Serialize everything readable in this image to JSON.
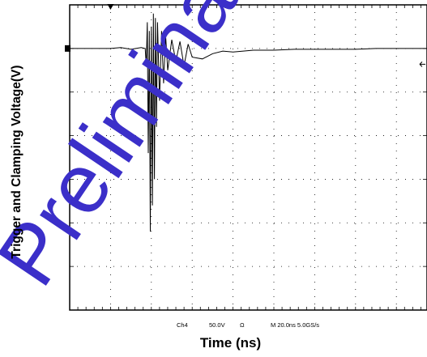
{
  "chart_data": {
    "type": "line",
    "title": "",
    "xlabel": "Time (ns)",
    "ylabel": "Trigger and Clamping Voltage(V)",
    "grid": true,
    "x_unit": "ns",
    "y_unit": "V",
    "time_per_div_ns": 20,
    "volts_per_div": 50,
    "xlim": [
      -20,
      155
    ],
    "ylim": [
      -300,
      50
    ],
    "series": [
      {
        "x": [
          -20,
          -10,
          0,
          5,
          10,
          15,
          17,
          17.5,
          18,
          18.5,
          19,
          19.5,
          20,
          20.5,
          21,
          21.5,
          22,
          22.5,
          23,
          24,
          25,
          26,
          27,
          28,
          30,
          32,
          34,
          36,
          38,
          40,
          45,
          50,
          55,
          60,
          70,
          80,
          90,
          100,
          110,
          120,
          130,
          140,
          155
        ],
        "y": [
          0,
          0,
          0,
          1,
          -1,
          1,
          0,
          -20,
          30,
          -120,
          20,
          -210,
          25,
          -180,
          40,
          -150,
          35,
          -90,
          30,
          -60,
          20,
          -40,
          15,
          -25,
          10,
          -15,
          8,
          -20,
          5,
          -10,
          -12,
          -6,
          -3,
          -4,
          -2,
          -2,
          -1,
          -1,
          -1,
          -1,
          0,
          0,
          0
        ]
      }
    ],
    "trigger_marker_time_ns": 0,
    "markers": [
      {
        "name": "channel-ground-marker",
        "y": 0
      },
      {
        "name": "trigger-level-marker",
        "y": -20
      }
    ]
  },
  "readout": {
    "channel": "Ch4",
    "scale": "50.0V",
    "coupling": "Ω",
    "timebase": "M 20.0ns 5.0GS/s"
  },
  "watermark": {
    "text": "Preliminary",
    "color": "#3b2fc9"
  }
}
